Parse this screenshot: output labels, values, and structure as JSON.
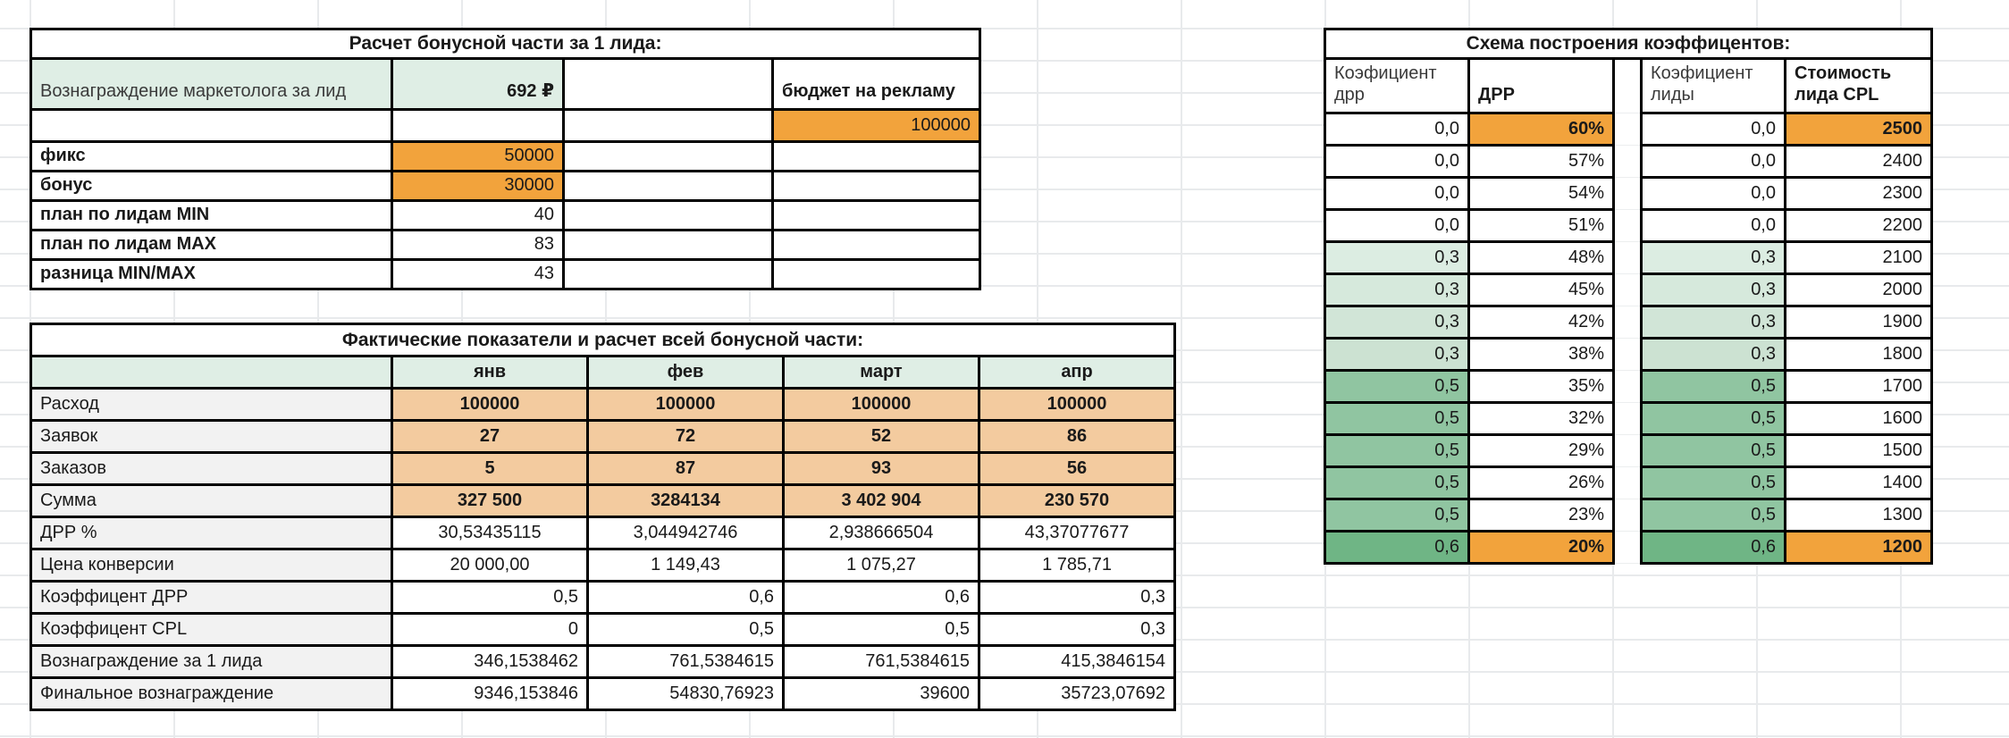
{
  "top_table": {
    "title": "Расчет бонусной части за 1 лида:",
    "reward_label": "Вознаграждение маркетолога за лид",
    "reward_value": "692 ₽",
    "budget_label": "бюджет на рекламу",
    "budget_value": "100000",
    "rows": [
      {
        "label": "фикс",
        "value": "50000",
        "highlight": true
      },
      {
        "label": "бонус",
        "value": "30000",
        "highlight": true
      },
      {
        "label": "план по лидам MIN",
        "value": "40",
        "highlight": false
      },
      {
        "label": "план по лидам MAX",
        "value": "83",
        "highlight": false
      },
      {
        "label": "разница MIN/MAX",
        "value": "43",
        "highlight": false
      }
    ]
  },
  "facts_table": {
    "title": "Фактические показатели и расчет всей бонусной части:",
    "months": [
      "янв",
      "фев",
      "март",
      "апр"
    ],
    "rows": [
      {
        "label": "Расход",
        "values": [
          "100000",
          "100000",
          "100000",
          "100000"
        ],
        "style": "orange"
      },
      {
        "label": "Заявок",
        "values": [
          "27",
          "72",
          "52",
          "86"
        ],
        "style": "orange"
      },
      {
        "label": "Заказов",
        "values": [
          "5",
          "87",
          "93",
          "56"
        ],
        "style": "orange"
      },
      {
        "label": "Сумма",
        "values": [
          "327 500",
          "3284134",
          "3 402 904",
          "230 570"
        ],
        "style": "orange"
      },
      {
        "label": "ДРР %",
        "values": [
          "30,53435115",
          "3,044942746",
          "2,938666504",
          "43,37077677"
        ],
        "style": "center"
      },
      {
        "label": "Цена конверсии",
        "values": [
          "20 000,00",
          "1 149,43",
          "1 075,27",
          "1 785,71"
        ],
        "style": "center"
      },
      {
        "label": "Коэффицент ДРР",
        "values": [
          "0,5",
          "0,6",
          "0,6",
          "0,3"
        ],
        "style": "right"
      },
      {
        "label": "Коэффицент CPL",
        "values": [
          "0",
          "0,5",
          "0,5",
          "0,3"
        ],
        "style": "right"
      },
      {
        "label": "Вознаграждение за 1 лида",
        "values": [
          "346,1538462",
          "761,5384615",
          "761,5384615",
          "415,3846154"
        ],
        "style": "right"
      },
      {
        "label": "Финальное вознаграждение",
        "values": [
          "9346,153846",
          "54830,76923",
          "39600",
          "35723,07692"
        ],
        "style": "right"
      }
    ]
  },
  "scheme_table": {
    "title": "Схема построения коэффицентов:",
    "drr_coef_header": "Коэфициент дрр",
    "drr_header": "ДРР",
    "cpl_coef_header": "Коэфициент лиды",
    "cpl_header": "Стоимость лида CPL",
    "rows": [
      {
        "coef": "0,0",
        "drr": "60%",
        "cpl": "2500",
        "tint": "t0",
        "highlight": true
      },
      {
        "coef": "0,0",
        "drr": "57%",
        "cpl": "2400",
        "tint": "t0",
        "highlight": false
      },
      {
        "coef": "0,0",
        "drr": "54%",
        "cpl": "2300",
        "tint": "t0",
        "highlight": false
      },
      {
        "coef": "0,0",
        "drr": "51%",
        "cpl": "2200",
        "tint": "t0",
        "highlight": false
      },
      {
        "coef": "0,3",
        "drr": "48%",
        "cpl": "2100",
        "tint": "t1",
        "highlight": false
      },
      {
        "coef": "0,3",
        "drr": "45%",
        "cpl": "2000",
        "tint": "t2",
        "highlight": false
      },
      {
        "coef": "0,3",
        "drr": "42%",
        "cpl": "1900",
        "tint": "t3",
        "highlight": false
      },
      {
        "coef": "0,3",
        "drr": "38%",
        "cpl": "1800",
        "tint": "t4",
        "highlight": false
      },
      {
        "coef": "0,5",
        "drr": "35%",
        "cpl": "1700",
        "tint": "t5",
        "highlight": false
      },
      {
        "coef": "0,5",
        "drr": "32%",
        "cpl": "1600",
        "tint": "t5",
        "highlight": false
      },
      {
        "coef": "0,5",
        "drr": "29%",
        "cpl": "1500",
        "tint": "t5",
        "highlight": false
      },
      {
        "coef": "0,5",
        "drr": "26%",
        "cpl": "1400",
        "tint": "t5",
        "highlight": false
      },
      {
        "coef": "0,5",
        "drr": "23%",
        "cpl": "1300",
        "tint": "t5",
        "highlight": false
      },
      {
        "coef": "0,6",
        "drr": "20%",
        "cpl": "1200",
        "tint": "t6",
        "highlight": true
      }
    ]
  },
  "colors": {
    "orange_accent": "#F2A33C",
    "light_orange": "#F3CB9F",
    "mint_header": "#DFEEE5",
    "label_gray": "#F2F2F2",
    "green_03_shades": [
      "#DCEDE2",
      "#D6E9DC",
      "#D1E5D7",
      "#CCE2D2"
    ],
    "green_05": "#90C5A1",
    "green_06": "#6FB585",
    "gridline": "#E8EAEC",
    "cell_border": "#000000"
  }
}
